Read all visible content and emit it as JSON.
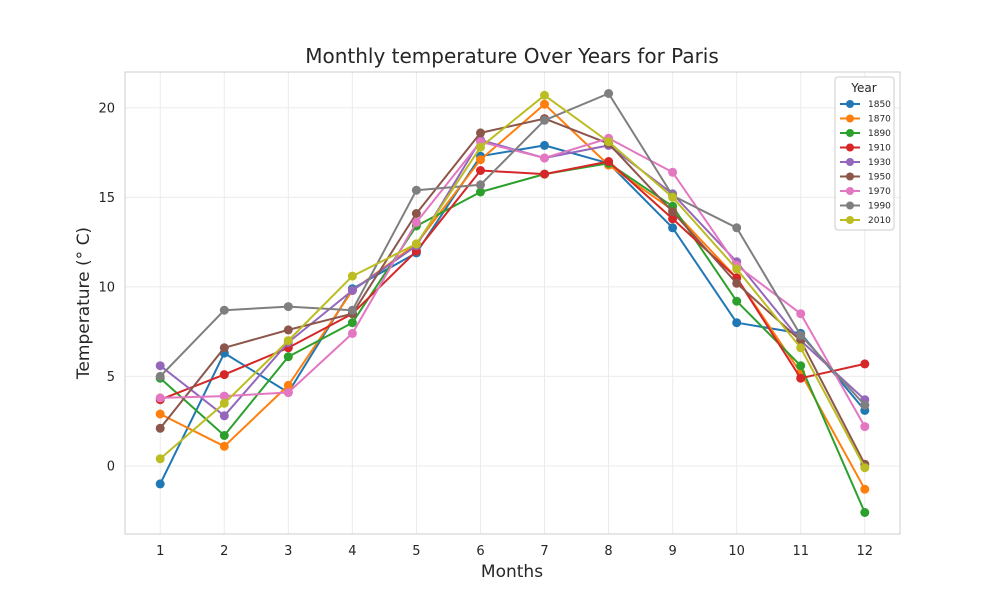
{
  "chart_data": {
    "type": "line",
    "title": "Monthly temperature Over Years for Paris",
    "xlabel": "Months",
    "ylabel": "Temperature (° C)",
    "x": [
      1,
      2,
      3,
      4,
      5,
      6,
      7,
      8,
      9,
      10,
      11,
      12
    ],
    "x_ticks": [
      "1",
      "2",
      "3",
      "4",
      "5",
      "6",
      "7",
      "8",
      "9",
      "10",
      "11",
      "12"
    ],
    "y_ticks": [
      "0",
      "5",
      "10",
      "15",
      "20"
    ],
    "xlim": [
      0.45,
      12.55
    ],
    "ylim": [
      -3.8,
      22
    ],
    "grid": true,
    "legend": {
      "title": "Year",
      "placement": "top-right"
    },
    "series": [
      {
        "name": "1850",
        "color": "#1f77b4",
        "values": [
          -1.0,
          6.3,
          4.1,
          9.9,
          11.9,
          17.3,
          17.9,
          16.9,
          13.3,
          8.0,
          7.4,
          3.1
        ]
      },
      {
        "name": "1870",
        "color": "#ff7f0e",
        "values": [
          2.9,
          1.1,
          4.5,
          9.8,
          12.4,
          17.1,
          20.2,
          16.8,
          14.3,
          10.5,
          5.2,
          -1.3
        ]
      },
      {
        "name": "1890",
        "color": "#2ca02c",
        "values": [
          4.9,
          1.7,
          6.1,
          8.0,
          13.4,
          15.3,
          16.3,
          16.9,
          14.5,
          9.2,
          5.6,
          -2.6
        ]
      },
      {
        "name": "1910",
        "color": "#d62728",
        "values": [
          3.7,
          5.1,
          6.6,
          8.5,
          12.0,
          16.5,
          16.3,
          17.0,
          13.8,
          10.5,
          4.9,
          5.7
        ]
      },
      {
        "name": "1930",
        "color": "#9467bd",
        "values": [
          5.6,
          2.8,
          6.9,
          9.8,
          12.3,
          18.2,
          17.2,
          17.9,
          15.2,
          11.4,
          7.0,
          3.7
        ]
      },
      {
        "name": "1950",
        "color": "#8c564b",
        "values": [
          2.1,
          6.6,
          7.6,
          8.5,
          14.1,
          18.6,
          19.4,
          18.0,
          14.2,
          10.2,
          7.0,
          0.1
        ]
      },
      {
        "name": "1970",
        "color": "#e377c2",
        "values": [
          3.8,
          3.9,
          4.1,
          7.4,
          13.6,
          18.1,
          17.2,
          18.3,
          16.4,
          11.2,
          8.5,
          2.2
        ]
      },
      {
        "name": "1990",
        "color": "#7f7f7f",
        "values": [
          5.0,
          8.7,
          8.9,
          8.7,
          15.4,
          15.7,
          19.3,
          20.8,
          15.1,
          13.3,
          7.3,
          3.4
        ]
      },
      {
        "name": "2010",
        "color": "#bcbd22",
        "values": [
          0.4,
          3.5,
          7.0,
          10.6,
          12.4,
          17.8,
          20.7,
          18.1,
          15.0,
          11.0,
          6.6,
          -0.1
        ]
      }
    ]
  }
}
